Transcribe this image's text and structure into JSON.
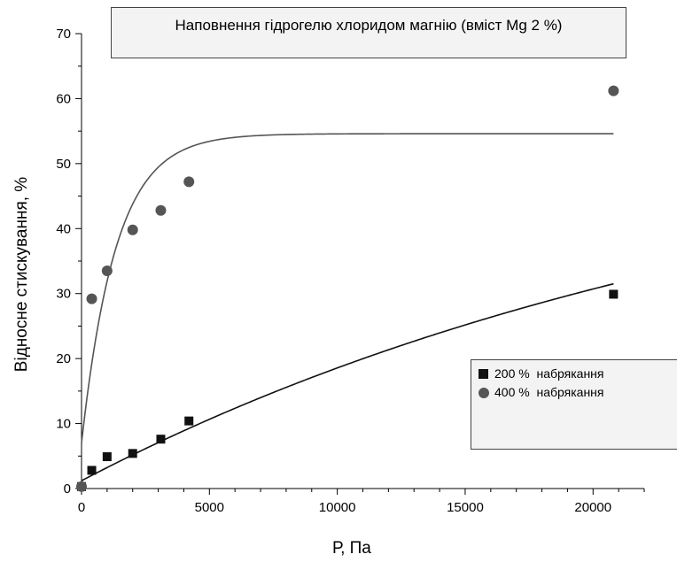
{
  "chart_data": {
    "type": "scatter",
    "title": "Наповнення гідрогелю хлоридом магнію (вміст Mg 2 %)",
    "xlabel": "Р, Па",
    "ylabel": "Відносне стискування, %",
    "xlim": [
      0,
      22000
    ],
    "ylim": [
      0,
      70
    ],
    "xticks": [
      0,
      5000,
      10000,
      15000,
      20000
    ],
    "yticks": [
      0,
      10,
      20,
      30,
      40,
      50,
      60,
      70
    ],
    "legend_position": "right-middle",
    "grid": false,
    "series": [
      {
        "name": "200 %  набрякання",
        "marker": "square",
        "color": "#111111",
        "x": [
          0,
          400,
          1000,
          2000,
          3100,
          4200,
          20800
        ],
        "y": [
          0.3,
          2.8,
          4.9,
          5.4,
          7.6,
          10.4,
          29.9
        ],
        "fit": {
          "x0": 0,
          "x1": 20800,
          "y0": 1.2,
          "A": 57.8,
          "t": 28000
        }
      },
      {
        "name": "400 %  набрякання",
        "marker": "circle",
        "color": "#555555",
        "x": [
          0,
          400,
          1000,
          2000,
          3100,
          4200,
          20800
        ],
        "y": [
          0.3,
          29.2,
          33.5,
          39.8,
          42.8,
          47.2,
          61.2
        ],
        "fit": {
          "x0": 0,
          "x1": 20800,
          "y0": 7.0,
          "A": 47.6,
          "t": 1350
        }
      }
    ]
  }
}
